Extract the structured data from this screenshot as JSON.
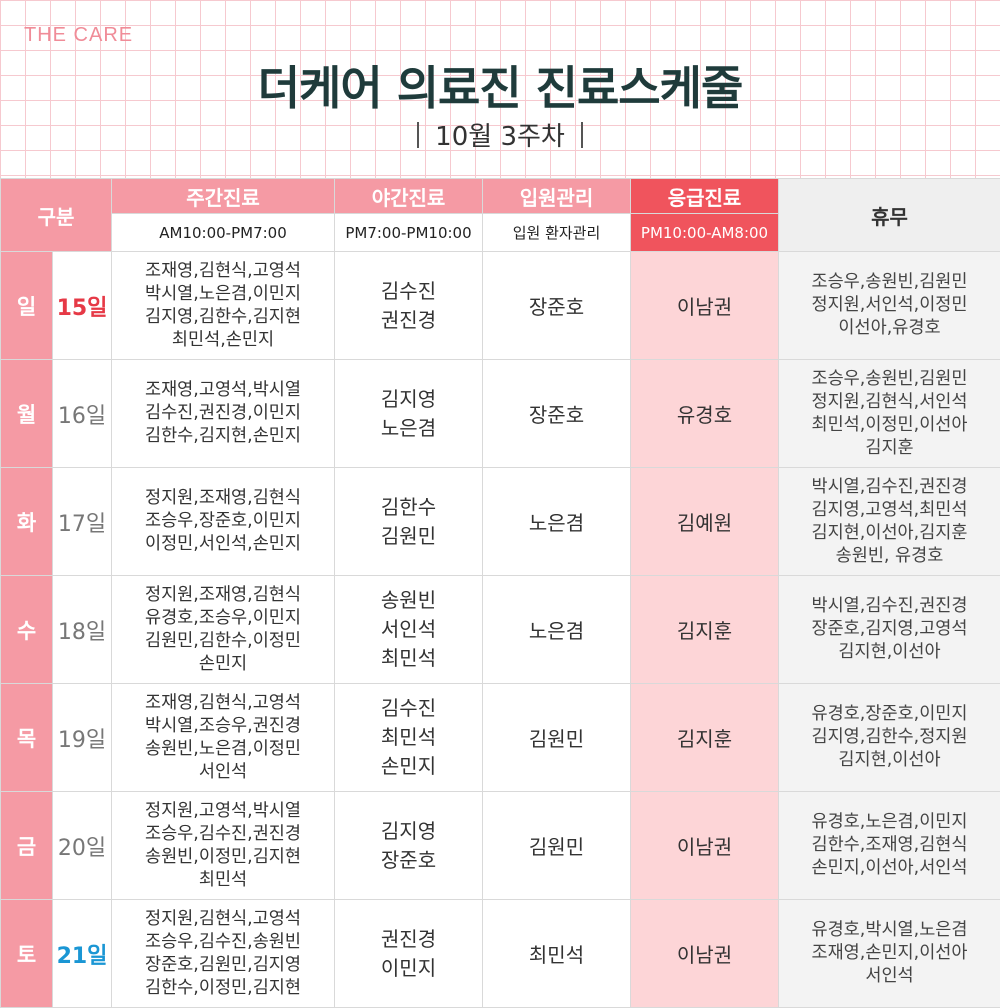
{
  "brand": "THE CARE",
  "title": "더케어 의료진 진료스케줄",
  "subtitle": "10월 3주차",
  "colors": {
    "pink": "#f59aa4",
    "red": "#f0545d",
    "emergency_bg": "#fdd5d7",
    "off_bg": "#f3f3f3",
    "sunday": "#e63946",
    "saturday": "#1a96d4"
  },
  "header": {
    "gubun": "구분",
    "day_clinic": "주간진료",
    "night_clinic": "야간진료",
    "inpatient": "입원관리",
    "emergency": "응급진료",
    "off": "휴무",
    "day_hours": "AM10:00-PM7:00",
    "night_hours": "PM7:00-PM10:00",
    "inpatient_sub": "입원 환자관리",
    "emergency_hours": "PM10:00-AM8:00"
  },
  "rows": [
    {
      "dow": "일",
      "date": "15일",
      "day": "조재영,김현식,고영석\n박시열,노은겸,이민지\n김지영,김한수,김지현\n최민석,손민지",
      "night": "김수진\n권진경",
      "inpatient": "장준호",
      "emergency": "이남권",
      "off": "조승우,송원빈,김원민\n정지원,서인석,이정민\n이선아,유경호"
    },
    {
      "dow": "월",
      "date": "16일",
      "day": "조재영,고영석,박시열\n김수진,권진경,이민지\n김한수,김지현,손민지",
      "night": "김지영\n노은겸",
      "inpatient": "장준호",
      "emergency": "유경호",
      "off": "조승우,송원빈,김원민\n정지원,김현식,서인석\n최민석,이정민,이선아\n김지훈"
    },
    {
      "dow": "화",
      "date": "17일",
      "day": "정지원,조재영,김현식\n조승우,장준호,이민지\n이정민,서인석,손민지",
      "night": "김한수\n김원민",
      "inpatient": "노은겸",
      "emergency": "김예원",
      "off": "박시열,김수진,권진경\n김지영,고영석,최민석\n김지현,이선아,김지훈\n송원빈, 유경호"
    },
    {
      "dow": "수",
      "date": "18일",
      "day": "정지원,조재영,김현식\n유경호,조승우,이민지\n김원민,김한수,이정민\n손민지",
      "night": "송원빈\n서인석\n최민석",
      "inpatient": "노은겸",
      "emergency": "김지훈",
      "off": "박시열,김수진,권진경\n장준호,김지영,고영석\n김지현,이선아"
    },
    {
      "dow": "목",
      "date": "19일",
      "day": "조재영,김현식,고영석\n박시열,조승우,권진경\n송원빈,노은겸,이정민\n서인석",
      "night": "김수진\n최민석\n손민지",
      "inpatient": "김원민",
      "emergency": "김지훈",
      "off": "유경호,장준호,이민지\n김지영,김한수,정지원\n김지현,이선아"
    },
    {
      "dow": "금",
      "date": "20일",
      "day": "정지원,고영석,박시열\n조승우,김수진,권진경\n송원빈,이정민,김지현\n최민석",
      "night": "김지영\n장준호",
      "inpatient": "김원민",
      "emergency": "이남권",
      "off": "유경호,노은겸,이민지\n김한수,조재영,김현식\n손민지,이선아,서인석"
    },
    {
      "dow": "토",
      "date": "21일",
      "day": "정지원,김현식,고영석\n조승우,김수진,송원빈\n장준호,김원민,김지영\n김한수,이정민,김지현",
      "night": "권진경\n이민지",
      "inpatient": "최민석",
      "emergency": "이남권",
      "off": "유경호,박시열,노은겸\n조재영,손민지,이선아\n서인석"
    }
  ]
}
